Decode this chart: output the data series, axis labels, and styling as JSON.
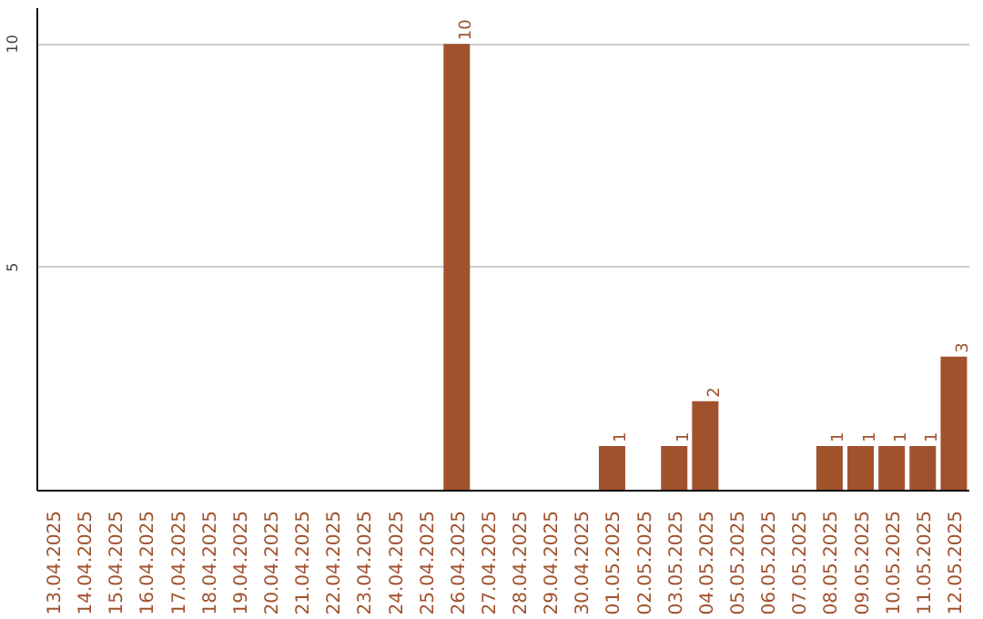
{
  "chart_data": {
    "type": "bar",
    "categories": [
      "13.04.2025",
      "14.04.2025",
      "15.04.2025",
      "16.04.2025",
      "17.04.2025",
      "18.04.2025",
      "19.04.2025",
      "20.04.2025",
      "21.04.2025",
      "22.04.2025",
      "23.04.2025",
      "24.04.2025",
      "25.04.2025",
      "26.04.2025",
      "27.04.2025",
      "28.04.2025",
      "29.04.2025",
      "30.04.2025",
      "01.05.2025",
      "02.05.2025",
      "03.05.2025",
      "04.05.2025",
      "05.05.2025",
      "06.05.2025",
      "07.05.2025",
      "08.05.2025",
      "09.05.2025",
      "10.05.2025",
      "11.05.2025",
      "12.05.2025"
    ],
    "values": [
      0,
      0,
      0,
      0,
      0,
      0,
      0,
      0,
      0,
      0,
      0,
      0,
      0,
      10,
      0,
      0,
      0,
      0,
      1,
      0,
      1,
      2,
      0,
      0,
      0,
      1,
      1,
      1,
      1,
      3
    ],
    "value_labels": [
      null,
      null,
      null,
      null,
      null,
      null,
      null,
      null,
      null,
      null,
      null,
      null,
      null,
      "10",
      null,
      null,
      null,
      null,
      "1",
      null,
      "1",
      "2",
      null,
      null,
      null,
      "1",
      "1",
      "1",
      "1",
      "3"
    ],
    "color": "#a0522d",
    "ylim": [
      0,
      10.8
    ],
    "yticks": [
      5,
      10
    ],
    "grid": "y",
    "legend": false
  }
}
